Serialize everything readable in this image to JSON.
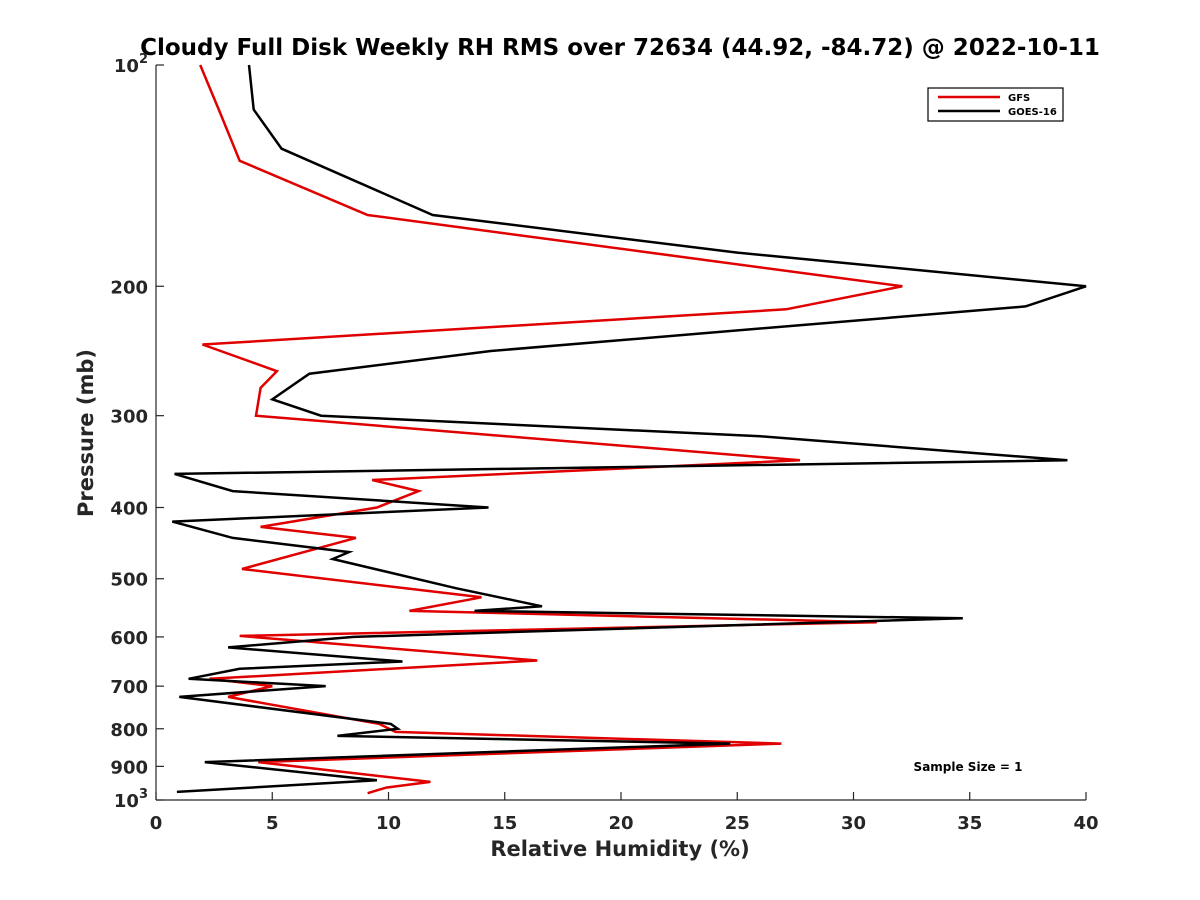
{
  "chart_data": {
    "type": "line",
    "title": "Cloudy Full Disk Weekly RH RMS over 72634 (44.92, -84.72) @ 2022-10-11",
    "xlabel": "Relative Humidity (%)",
    "ylabel": "Pressure (mb)",
    "xlim": [
      0,
      40
    ],
    "ylim": [
      100,
      1000
    ],
    "yscale": "log",
    "y_reversed": true,
    "grid": false,
    "legend_position": "top-right",
    "x_ticks": [
      "0",
      "5",
      "10",
      "15",
      "20",
      "25",
      "30",
      "35",
      "40"
    ],
    "y_ticks": [
      {
        "value": 100,
        "base": "10",
        "exp": "2"
      },
      {
        "value": 200,
        "label": "200"
      },
      {
        "value": 300,
        "label": "300"
      },
      {
        "value": 400,
        "label": "400"
      },
      {
        "value": 500,
        "label": "500"
      },
      {
        "value": 600,
        "label": "600"
      },
      {
        "value": 700,
        "label": "700"
      },
      {
        "value": 800,
        "label": "800"
      },
      {
        "value": 900,
        "label": "900"
      },
      {
        "value": 1000,
        "base": "10",
        "exp": "3"
      }
    ],
    "annotation": "Sample Size = 1",
    "series": [
      {
        "name": "GFS",
        "color": "#e00000",
        "points": [
          [
            1.9,
            100
          ],
          [
            2.7,
            115
          ],
          [
            3.6,
            135
          ],
          [
            9.1,
            160
          ],
          [
            32.1,
            200
          ],
          [
            27.1,
            215
          ],
          [
            2.0,
            240
          ],
          [
            5.2,
            261
          ],
          [
            4.5,
            275
          ],
          [
            4.3,
            300
          ],
          [
            27.7,
            345
          ],
          [
            9.3,
            367
          ],
          [
            11.3,
            380
          ],
          [
            9.5,
            400
          ],
          [
            4.5,
            425
          ],
          [
            8.6,
            440
          ],
          [
            3.7,
            485
          ],
          [
            14.0,
            530
          ],
          [
            10.9,
            553
          ],
          [
            31.0,
            573
          ],
          [
            3.6,
            598
          ],
          [
            16.4,
            646
          ],
          [
            2.3,
            684
          ],
          [
            5.0,
            700
          ],
          [
            3.1,
            724
          ],
          [
            9.6,
            788
          ],
          [
            10.3,
            808
          ],
          [
            26.9,
            838
          ],
          [
            4.4,
            888
          ],
          [
            11.8,
            945
          ],
          [
            9.9,
            962
          ],
          [
            9.1,
            979
          ]
        ]
      },
      {
        "name": "GOES-16",
        "color": "#000000",
        "points": [
          [
            4.0,
            100
          ],
          [
            4.2,
            115
          ],
          [
            5.4,
            130
          ],
          [
            11.9,
            160
          ],
          [
            25.0,
            180
          ],
          [
            40.0,
            200
          ],
          [
            37.4,
            213
          ],
          [
            14.4,
            245
          ],
          [
            6.6,
            263
          ],
          [
            5.0,
            285
          ],
          [
            7.1,
            300
          ],
          [
            26.0,
            320
          ],
          [
            39.2,
            345
          ],
          [
            0.8,
            360
          ],
          [
            3.3,
            380
          ],
          [
            14.3,
            400
          ],
          [
            0.7,
            418
          ],
          [
            3.3,
            440
          ],
          [
            8.3,
            460
          ],
          [
            7.6,
            470
          ],
          [
            12.9,
            515
          ],
          [
            16.6,
            545
          ],
          [
            13.7,
            553
          ],
          [
            34.7,
            566
          ],
          [
            8.5,
            600
          ],
          [
            3.1,
            620
          ],
          [
            10.6,
            648
          ],
          [
            3.6,
            663
          ],
          [
            1.4,
            684
          ],
          [
            7.3,
            700
          ],
          [
            1.0,
            724
          ],
          [
            10.1,
            788
          ],
          [
            10.4,
            800
          ],
          [
            7.8,
            818
          ],
          [
            24.7,
            838
          ],
          [
            2.1,
            888
          ],
          [
            9.5,
            940
          ],
          [
            0.9,
            975
          ]
        ]
      }
    ]
  }
}
